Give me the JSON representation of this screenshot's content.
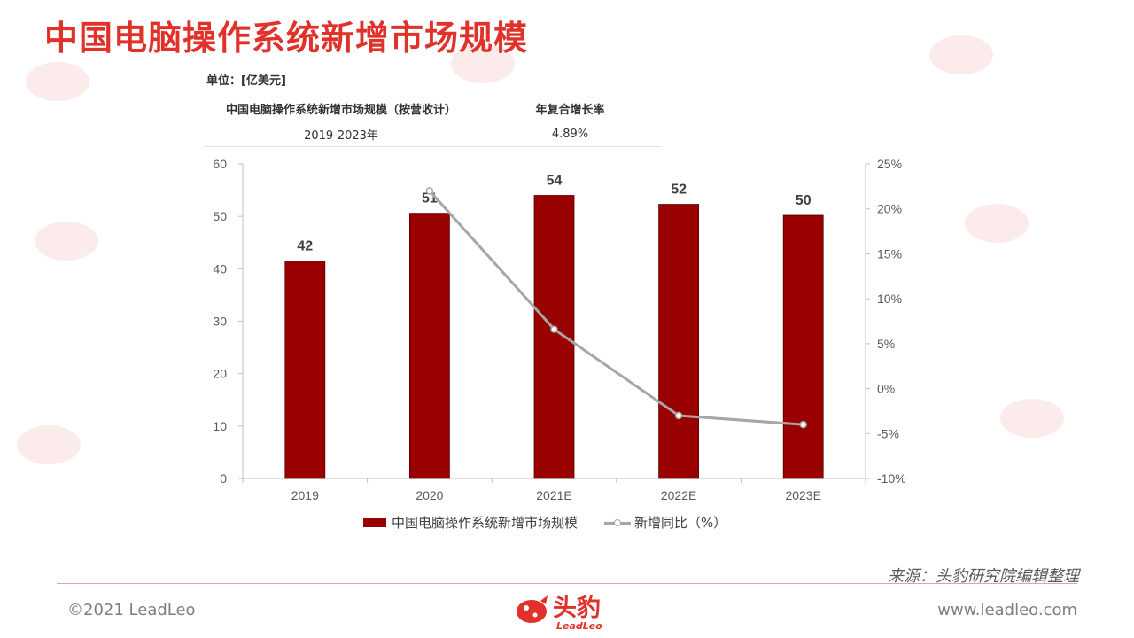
{
  "title": "中国电脑操作系统新增市场规模",
  "unit_label": "单位：[亿美元]",
  "cagr_table": {
    "headers": [
      "中国电脑操作系统新增市场规模（按营收计）",
      "年复合增长率"
    ],
    "rows": [
      [
        "2019-2023年",
        "4.89%"
      ]
    ]
  },
  "chart_data": {
    "type": "bar",
    "categories": [
      "2019",
      "2020",
      "2021E",
      "2022E",
      "2023E"
    ],
    "series": [
      {
        "name": "中国电脑操作系统新增市场规模",
        "type": "bar",
        "axis": "left",
        "values": [
          41.5,
          50.6,
          54.0,
          52.3,
          50.2
        ],
        "labels": [
          "42",
          "51",
          "54",
          "52",
          "50"
        ],
        "color": "#990000"
      },
      {
        "name": "新增同比（%）",
        "type": "line",
        "axis": "right",
        "values": [
          null,
          22.0,
          6.6,
          -3.0,
          -4.0
        ],
        "color": "#a6a6a6"
      }
    ],
    "y_left": {
      "min": 0,
      "max": 60,
      "ticks": [
        "0",
        "10",
        "20",
        "30",
        "40",
        "50",
        "60"
      ]
    },
    "y_right": {
      "min": -10,
      "max": 25,
      "ticks": [
        "-10%",
        "-5%",
        "0%",
        "5%",
        "10%",
        "15%",
        "20%",
        "25%"
      ]
    },
    "grid": false,
    "legend_position": "bottom"
  },
  "legend": {
    "bar_label": "中国电脑操作系统新增市场规模",
    "line_label": "新增同比（%）"
  },
  "source": "来源：头豹研究院编辑整理",
  "copyright": "©2021 LeadLeo",
  "website": "www.leadleo.com",
  "logo": {
    "cn": "头豹",
    "en": "LeadLeo"
  },
  "colors": {
    "brand": "#e0312a",
    "bar": "#990000",
    "line": "#a6a6a6"
  }
}
